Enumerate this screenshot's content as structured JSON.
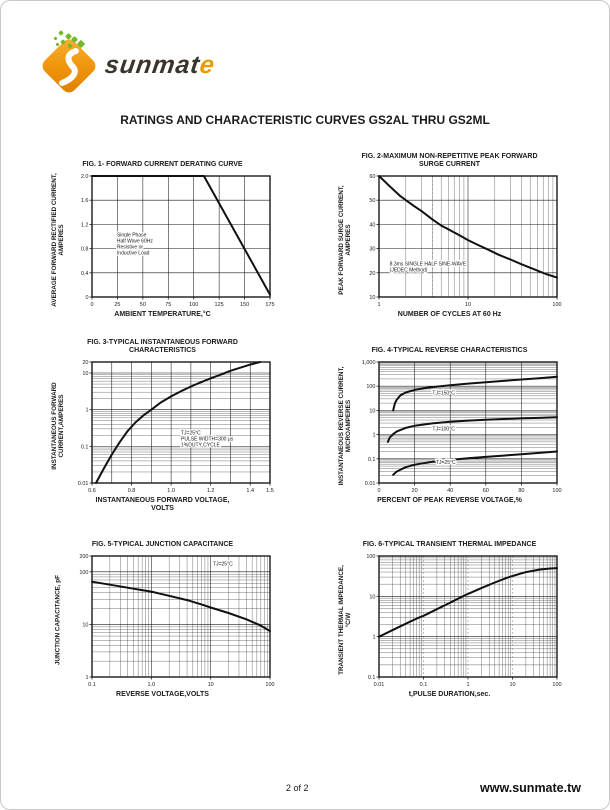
{
  "page": {
    "title": "RATINGS AND CHARACTERISTIC CURVES GS2AL THRU GS2ML",
    "footer_page": "2 of 2",
    "footer_site": "www.sunmate.tw"
  },
  "logo": {
    "brand_dark": "sunmat",
    "brand_accent": "e",
    "colors": {
      "orange": "#ef9309",
      "green": "#76b82a",
      "text": "#3b342c"
    }
  },
  "chart_data": [
    {
      "id": "fig1",
      "type": "line",
      "title": "FIG. 1- FORWARD CURRENT DERATING CURVE",
      "xlabel": "AMBIENT TEMPERATURE,°C",
      "ylabel": "AVERAGE FORWARD RECTIFIED CURRENT,\nAMPERES",
      "x": {
        "scale": "linear",
        "min": 0,
        "max": 175,
        "grid": [
          25,
          50,
          75,
          100,
          125,
          150
        ],
        "labels": [
          [
            0,
            "0"
          ],
          [
            25,
            "25"
          ],
          [
            50,
            "50"
          ],
          [
            75,
            "75"
          ],
          [
            100,
            "100"
          ],
          [
            125,
            "125"
          ],
          [
            150,
            "150"
          ],
          [
            175,
            "175"
          ]
        ],
        "minor": false
      },
      "y": {
        "scale": "linear",
        "min": 0,
        "max": 2.0,
        "grid": [
          0.4,
          0.8,
          1.2,
          1.6
        ],
        "labels": [
          [
            0,
            "0"
          ],
          [
            0.4,
            "0.4"
          ],
          [
            0.8,
            "0.8"
          ],
          [
            1.2,
            "1.2"
          ],
          [
            1.6,
            "1.6"
          ],
          [
            2.0,
            "2.0"
          ]
        ],
        "minor": false
      },
      "series": [
        {
          "name": "derating-curve",
          "points": [
            [
              0,
              2
            ],
            [
              110,
              2
            ],
            [
              175,
              0.04
            ]
          ]
        }
      ],
      "annotations": [
        {
          "text": "Single Phase\nHalf Wave 60Hz\nResistive or\nInductive Load",
          "fx": 0.14,
          "fy": 0.5
        }
      ]
    },
    {
      "id": "fig2",
      "type": "line",
      "title": "FIG. 2-MAXIMUM NON-REPETITIVE PEAK FORWARD\nSURGE CURRENT",
      "xlabel": "NUMBER OF CYCLES AT 60 Hz",
      "ylabel": "PEAK  FORWARD SURGE CURRENT,\nAMPERES",
      "x": {
        "scale": "log",
        "min": 1,
        "max": 100,
        "grid": [
          10
        ],
        "labels": [
          [
            1,
            "1"
          ],
          [
            10,
            "10"
          ],
          [
            100,
            "100"
          ]
        ],
        "minor": true
      },
      "y": {
        "scale": "linear",
        "min": 10,
        "max": 60,
        "grid": [
          20,
          30,
          40,
          50
        ],
        "labels": [
          [
            10,
            "10"
          ],
          [
            20,
            "20"
          ],
          [
            30,
            "30"
          ],
          [
            40,
            "40"
          ],
          [
            50,
            "50"
          ],
          [
            60,
            "60"
          ]
        ],
        "minor": false
      },
      "extra_lines": [
        {
          "axis": "x",
          "v": 4,
          "style": "dashed"
        }
      ],
      "series": [
        {
          "name": "surge-current",
          "points": [
            [
              1,
              60
            ],
            [
              1.3,
              56
            ],
            [
              1.7,
              52
            ],
            [
              2,
              50
            ],
            [
              2.5,
              47.5
            ],
            [
              3,
              45.5
            ],
            [
              4,
              42
            ],
            [
              5,
              39.5
            ],
            [
              6,
              38
            ],
            [
              8,
              35.5
            ],
            [
              10,
              33.5
            ],
            [
              13,
              31.5
            ],
            [
              17,
              29.5
            ],
            [
              22,
              27.5
            ],
            [
              30,
              25.5
            ],
            [
              40,
              23.5
            ],
            [
              55,
              21.5
            ],
            [
              75,
              19.5
            ],
            [
              100,
              18
            ]
          ]
        }
      ],
      "annotations": [
        {
          "text": "8.3ms SINGLE HALF SINE-WAVE\n(JEDEC Method)",
          "fx": 0.06,
          "fy": 0.74
        }
      ]
    },
    {
      "id": "fig3",
      "type": "line",
      "title": "FIG. 3-TYPICAL INSTANTANEOUS FORWARD\nCHARACTERISTICS",
      "xlabel": "INSTANTANEOUS FORWARD VOLTAGE,\nVOLTS",
      "ylabel": "INSTANTANEOUS FORWARD\nCURRENT,AMPERES",
      "x": {
        "scale": "linear",
        "min": 0.6,
        "max": 1.5,
        "grid": [
          0.7,
          0.8,
          0.9,
          1.0,
          1.1,
          1.2,
          1.3,
          1.4
        ],
        "labels": [
          [
            0.6,
            "0.6"
          ],
          [
            0.8,
            "0.8"
          ],
          [
            1.0,
            "1.0"
          ],
          [
            1.2,
            "1.2"
          ],
          [
            1.4,
            "1.4"
          ],
          [
            1.5,
            "1.5"
          ]
        ],
        "minor": false
      },
      "y": {
        "scale": "log",
        "min": 0.01,
        "max": 20,
        "grid": [
          0.1,
          1,
          10
        ],
        "labels": [
          [
            0.01,
            "0.01"
          ],
          [
            0.1,
            "0.1"
          ],
          [
            1,
            "1"
          ],
          [
            10,
            "10"
          ],
          [
            20,
            "20"
          ]
        ],
        "minor": true
      },
      "series": [
        {
          "name": "forward-characteristic",
          "points": [
            [
              0.62,
              0.01
            ],
            [
              0.66,
              0.025
            ],
            [
              0.7,
              0.06
            ],
            [
              0.74,
              0.13
            ],
            [
              0.78,
              0.26
            ],
            [
              0.82,
              0.45
            ],
            [
              0.86,
              0.7
            ],
            [
              0.9,
              1.0
            ],
            [
              0.95,
              1.6
            ],
            [
              1.0,
              2.3
            ],
            [
              1.05,
              3.2
            ],
            [
              1.1,
              4.3
            ],
            [
              1.15,
              5.6
            ],
            [
              1.2,
              7.2
            ],
            [
              1.25,
              9.0
            ],
            [
              1.3,
              11.5
            ],
            [
              1.35,
              14
            ],
            [
              1.4,
              17
            ],
            [
              1.45,
              20
            ]
          ]
        }
      ],
      "annotations": [
        {
          "text": "TJ=25°C\nPULSE WIDTH=300 μs\n1%DUTY CYCLE",
          "fx": 0.5,
          "fy": 0.6
        }
      ]
    },
    {
      "id": "fig4",
      "type": "line",
      "title": "FIG. 4-TYPICAL REVERSE CHARACTERISTICS",
      "xlabel": "PERCENT OF PEAK REVERSE VOLTAGE,%",
      "ylabel": "INSTANTANEOUS REVERSE CURRENT,\nMICROAMPERES",
      "x": {
        "scale": "linear",
        "min": 0,
        "max": 100,
        "grid": [
          20,
          40,
          60,
          80
        ],
        "labels": [
          [
            0,
            "0"
          ],
          [
            20,
            "20"
          ],
          [
            40,
            "40"
          ],
          [
            60,
            "60"
          ],
          [
            80,
            "80"
          ],
          [
            100,
            "100"
          ]
        ],
        "minor": false
      },
      "y": {
        "scale": "log",
        "min": 0.01,
        "max": 1000,
        "grid": [
          0.1,
          1,
          10,
          100
        ],
        "labels": [
          [
            0.01,
            "0.01"
          ],
          [
            0.1,
            "0.1"
          ],
          [
            1,
            "1"
          ],
          [
            10,
            "10"
          ],
          [
            100,
            "100"
          ],
          [
            1000,
            "1,000"
          ]
        ],
        "minor": true
      },
      "series": [
        {
          "name": "tj-150c",
          "points": [
            [
              8,
              10
            ],
            [
              8.4,
              14
            ],
            [
              9,
              20
            ],
            [
              10,
              28
            ],
            [
              12,
              42
            ],
            [
              15,
              55
            ],
            [
              20,
              70
            ],
            [
              25,
              82
            ],
            [
              30,
              92
            ],
            [
              40,
              110
            ],
            [
              50,
              128
            ],
            [
              60,
              145
            ],
            [
              70,
              165
            ],
            [
              80,
              190
            ],
            [
              90,
              215
            ],
            [
              100,
              245
            ]
          ]
        },
        {
          "name": "tj-100c",
          "points": [
            [
              5,
              0.5
            ],
            [
              6,
              0.75
            ],
            [
              8,
              1.05
            ],
            [
              10,
              1.35
            ],
            [
              15,
              1.9
            ],
            [
              20,
              2.3
            ],
            [
              30,
              2.9
            ],
            [
              40,
              3.4
            ],
            [
              50,
              3.8
            ],
            [
              60,
              4.1
            ],
            [
              70,
              4.4
            ],
            [
              80,
              4.7
            ],
            [
              90,
              4.9
            ],
            [
              100,
              5.2
            ]
          ]
        },
        {
          "name": "tj-25c",
          "points": [
            [
              8,
              0.022
            ],
            [
              10,
              0.03
            ],
            [
              15,
              0.045
            ],
            [
              20,
              0.057
            ],
            [
              30,
              0.075
            ],
            [
              40,
              0.09
            ],
            [
              50,
              0.105
            ],
            [
              60,
              0.12
            ],
            [
              70,
              0.135
            ],
            [
              80,
              0.155
            ],
            [
              90,
              0.175
            ],
            [
              100,
              0.2
            ]
          ]
        }
      ],
      "annotations": [
        {
          "text": "TJ=150°C",
          "fx": 0.3,
          "fy": 0.27
        },
        {
          "text": "TJ=100°C",
          "fx": 0.3,
          "fy": 0.565
        },
        {
          "text": "TJ=25°C",
          "fx": 0.32,
          "fy": 0.845
        }
      ]
    },
    {
      "id": "fig5",
      "type": "line",
      "title": "FIG. 5-TYPICAL JUNCTION CAPACITANCE",
      "xlabel": "REVERSE VOLTAGE,VOLTS",
      "ylabel": "JUNCTION CAPACITANCE, pF",
      "x": {
        "scale": "log",
        "min": 0.1,
        "max": 100,
        "grid": [
          1,
          10
        ],
        "labels": [
          [
            0.1,
            "0.1"
          ],
          [
            1,
            "1.0"
          ],
          [
            10,
            "10"
          ],
          [
            100,
            "100"
          ]
        ],
        "minor": true
      },
      "y": {
        "scale": "log",
        "min": 1,
        "max": 200,
        "grid": [
          10,
          100
        ],
        "labels": [
          [
            1,
            "1"
          ],
          [
            10,
            "10"
          ],
          [
            100,
            "100"
          ],
          [
            200,
            "200"
          ]
        ],
        "minor": true
      },
      "series": [
        {
          "name": "junction-capacitance",
          "points": [
            [
              0.1,
              65
            ],
            [
              0.2,
              57
            ],
            [
              0.4,
              50
            ],
            [
              0.7,
              45
            ],
            [
              1,
              42
            ],
            [
              2,
              35
            ],
            [
              4,
              29
            ],
            [
              7,
              24
            ],
            [
              10,
              21
            ],
            [
              20,
              16.5
            ],
            [
              40,
              12.5
            ],
            [
              70,
              9.5
            ],
            [
              100,
              7.5
            ]
          ]
        }
      ],
      "annotations": [
        {
          "text": "TJ=25°C",
          "fx": 0.68,
          "fy": 0.08
        }
      ]
    },
    {
      "id": "fig6",
      "type": "line",
      "title": "FIG. 6-TYPICAL TRANSIENT THERMAL IMPEDANCE",
      "xlabel": "t,PULSE DURATION,sec.",
      "ylabel": "TRANSIENT  THERMAL  IMPEDANCE,\n°C/W",
      "x": {
        "scale": "log",
        "min": 0.01,
        "max": 100,
        "grid": [
          0.1,
          1,
          10
        ],
        "grid_style": "dashed",
        "labels": [
          [
            0.01,
            "0.01"
          ],
          [
            0.1,
            "0.1"
          ],
          [
            1,
            "1"
          ],
          [
            10,
            "10"
          ],
          [
            100,
            "100"
          ]
        ],
        "minor": true
      },
      "y": {
        "scale": "log",
        "min": 0.1,
        "max": 100,
        "grid": [
          1,
          10
        ],
        "labels": [
          [
            0.1,
            "0.1"
          ],
          [
            1,
            "1"
          ],
          [
            10,
            "10"
          ],
          [
            100,
            "100"
          ]
        ],
        "minor": true
      },
      "extra_lines": [
        {
          "axis": "y",
          "v": 0.2,
          "style": "dashed"
        }
      ],
      "series": [
        {
          "name": "thermal-impedance",
          "points": [
            [
              0.01,
              1
            ],
            [
              0.02,
              1.45
            ],
            [
              0.04,
              2.1
            ],
            [
              0.07,
              2.8
            ],
            [
              0.1,
              3.3
            ],
            [
              0.2,
              4.8
            ],
            [
              0.4,
              7
            ],
            [
              0.7,
              9.5
            ],
            [
              1,
              11.5
            ],
            [
              2,
              16
            ],
            [
              4,
              22
            ],
            [
              7,
              28
            ],
            [
              10,
              32
            ],
            [
              20,
              40
            ],
            [
              40,
              46
            ],
            [
              70,
              49
            ],
            [
              100,
              50
            ]
          ]
        }
      ],
      "annotations": []
    }
  ]
}
